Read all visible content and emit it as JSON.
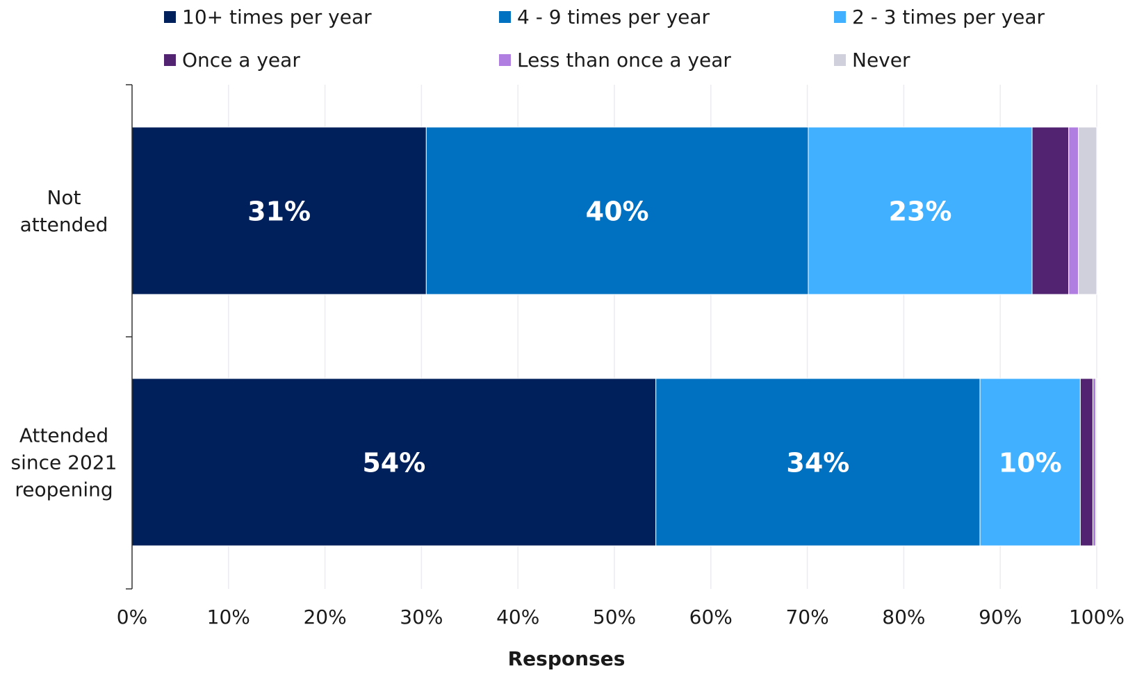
{
  "chart_data": {
    "type": "bar",
    "orientation": "horizontal",
    "stacked": true,
    "title": "",
    "xlabel": "Responses",
    "ylabel": "",
    "xlim": [
      0,
      100
    ],
    "xticks": [
      "0%",
      "10%",
      "20%",
      "30%",
      "40%",
      "50%",
      "60%",
      "70%",
      "80%",
      "90%",
      "100%"
    ],
    "categories": [
      "Not attended",
      "Attended since 2021 reopening"
    ],
    "category_lines": [
      [
        "Not",
        "attended"
      ],
      [
        "Attended",
        "since 2021",
        "reopening"
      ]
    ],
    "grid": "vertical",
    "legend_position": "top",
    "series": [
      {
        "name": "10+ times per year",
        "color": "#00205b",
        "values": [
          30.5,
          54.3
        ],
        "labels": [
          "31%",
          "54%"
        ]
      },
      {
        "name": "4 - 9 times per year",
        "color": "#0070c0",
        "values": [
          39.6,
          33.6
        ],
        "labels": [
          "40%",
          "34%"
        ]
      },
      {
        "name": "2 - 3 times per year",
        "color": "#40b0ff",
        "values": [
          23.2,
          10.4
        ],
        "labels": [
          "23%",
          "10%"
        ]
      },
      {
        "name": "Once a year",
        "color": "#522370",
        "values": [
          3.8,
          1.3
        ],
        "labels": [
          "",
          ""
        ]
      },
      {
        "name": "Less than once a year",
        "color": "#b07ee0",
        "values": [
          1.0,
          0.3
        ],
        "labels": [
          "",
          ""
        ]
      },
      {
        "name": "Never",
        "color": "#d0d0dc",
        "values": [
          1.9,
          0.1
        ],
        "labels": [
          "",
          ""
        ]
      }
    ]
  }
}
